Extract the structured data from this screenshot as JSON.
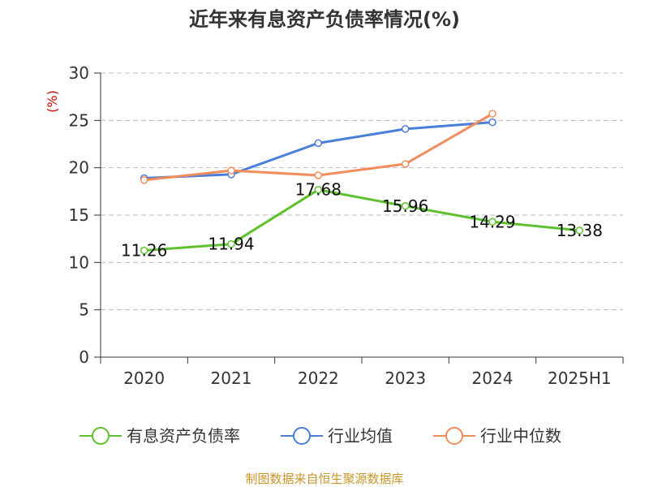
{
  "chart_data": {
    "type": "line",
    "title": "近年来有息资产负债率情况(%)",
    "ylabel": "(%)",
    "xlabel": "",
    "categories": [
      "2020",
      "2021",
      "2022",
      "2023",
      "2024",
      "2025H1"
    ],
    "yticks": [
      "0",
      "5",
      "10",
      "15",
      "20",
      "25",
      "30"
    ],
    "ylim": [
      0,
      30
    ],
    "grid": true,
    "legend_position": "bottom",
    "series": [
      {
        "name": "有息资产负债率",
        "color": "#5ec12d",
        "values": [
          11.26,
          11.94,
          17.68,
          15.96,
          14.29,
          13.38
        ],
        "labels": [
          "11.26",
          "11.94",
          "17.68",
          "15.96",
          "14.29",
          "13.38"
        ]
      },
      {
        "name": "行业均值",
        "color": "#4a7ed8",
        "values": [
          18.9,
          19.3,
          22.6,
          24.1,
          24.8,
          null
        ]
      },
      {
        "name": "行业中位数",
        "color": "#f28c5a",
        "values": [
          18.7,
          19.7,
          19.2,
          20.4,
          25.7,
          null
        ]
      }
    ]
  },
  "source": "制图数据来自恒生聚源数据库"
}
